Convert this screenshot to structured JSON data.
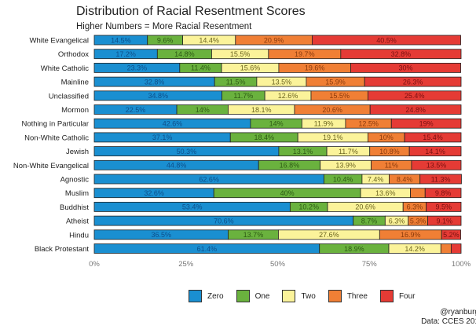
{
  "chart_data": {
    "type": "bar",
    "orientation": "horizontal",
    "stacked": true,
    "title": "Distribution of Racial Resentment Scores",
    "subtitle": "Higher Numbers = More Racial Resentment",
    "categories": [
      "White Evangelical",
      "Orthodox",
      "White Catholic",
      "Mainline",
      "Unclassified",
      "Mormon",
      "Nothing in Particular",
      "Non-White Catholic",
      "Jewish",
      "Non-White Evangelical",
      "Agnostic",
      "Muslim",
      "Buddhist",
      "Atheist",
      "Hindu",
      "Black Protestant"
    ],
    "series": [
      {
        "name": "Zero",
        "color": "#1a8fd1",
        "values": [
          14.5,
          17.2,
          23.3,
          32.8,
          34.8,
          22.5,
          42.6,
          37.1,
          50.3,
          44.8,
          62.6,
          32.6,
          53.4,
          70.6,
          36.5,
          61.4
        ]
      },
      {
        "name": "One",
        "color": "#6ab23e",
        "values": [
          9.6,
          14.8,
          11.4,
          11.5,
          11.7,
          14,
          14,
          18.4,
          13.1,
          16.8,
          10.4,
          40,
          10.2,
          8.7,
          13.7,
          18.9
        ]
      },
      {
        "name": "Two",
        "color": "#fbf39a",
        "values": [
          14.4,
          15.5,
          15.6,
          13.5,
          12.6,
          18.1,
          11.9,
          19.1,
          11.7,
          13.9,
          7.4,
          13.6,
          20.6,
          6.3,
          27.6,
          14.2
        ]
      },
      {
        "name": "Three",
        "color": "#f07f35",
        "values": [
          20.9,
          19.7,
          19.6,
          15.9,
          15.5,
          20.6,
          12.5,
          10,
          10.8,
          11,
          8.4,
          4.0,
          6.3,
          5.3,
          16.9,
          2.8
        ]
      },
      {
        "name": "Four",
        "color": "#e53b35",
        "values": [
          40.5,
          32.8,
          30,
          26.3,
          25.4,
          24.8,
          19,
          15.4,
          14.1,
          13.5,
          11.3,
          9.8,
          9.5,
          9.1,
          5.2,
          2.7
        ]
      }
    ],
    "value_labels_shown": [
      [
        true,
        true,
        true,
        true,
        true
      ],
      [
        true,
        true,
        true,
        true,
        true
      ],
      [
        true,
        true,
        true,
        true,
        true
      ],
      [
        true,
        true,
        true,
        true,
        true
      ],
      [
        true,
        true,
        true,
        true,
        true
      ],
      [
        true,
        true,
        true,
        true,
        true
      ],
      [
        true,
        true,
        true,
        true,
        true
      ],
      [
        true,
        true,
        true,
        true,
        true
      ],
      [
        true,
        true,
        true,
        true,
        true
      ],
      [
        true,
        true,
        true,
        true,
        true
      ],
      [
        true,
        true,
        true,
        true,
        true
      ],
      [
        true,
        true,
        true,
        false,
        true
      ],
      [
        true,
        true,
        true,
        true,
        true
      ],
      [
        true,
        true,
        true,
        true,
        true
      ],
      [
        true,
        true,
        true,
        true,
        true
      ],
      [
        true,
        true,
        true,
        false,
        false
      ]
    ],
    "xlim": [
      0,
      100
    ],
    "xticks": [
      "0%",
      "25%",
      "50%",
      "75%",
      "100%"
    ],
    "legend_position": "bottom",
    "grid": false
  },
  "credit": {
    "handle": "@ryanburg",
    "source": "Data: CCES 201"
  }
}
